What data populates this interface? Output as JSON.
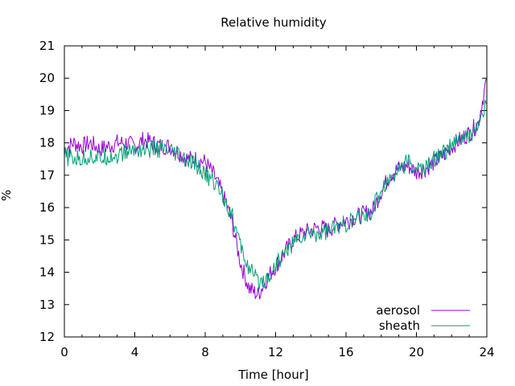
{
  "chart_data": {
    "type": "line",
    "title": "Relative humidity",
    "xlabel": "Time [hour]",
    "ylabel": "%",
    "xlim": [
      0,
      24
    ],
    "ylim": [
      12,
      21
    ],
    "xticks": [
      0,
      4,
      8,
      12,
      16,
      20,
      24
    ],
    "yticks": [
      12,
      13,
      14,
      15,
      16,
      17,
      18,
      19,
      20,
      21
    ],
    "grid": false,
    "legend_position": "bottom-right",
    "series": [
      {
        "name": "aerosol",
        "color": "#9400d3",
        "x": [
          0,
          0.5,
          1,
          1.5,
          2,
          2.5,
          3,
          3.5,
          4,
          4.5,
          5,
          5.5,
          6,
          6.5,
          7,
          7.5,
          8,
          8.5,
          9,
          9.5,
          10,
          10.5,
          11,
          11.5,
          12,
          12.5,
          13,
          13.5,
          14,
          14.5,
          15,
          15.5,
          16,
          16.5,
          17,
          17.5,
          18,
          18.5,
          19,
          19.5,
          20,
          20.5,
          21,
          21.5,
          22,
          22.5,
          23,
          23.5,
          24
        ],
        "values": [
          17.8,
          18.0,
          17.9,
          18.0,
          17.8,
          17.9,
          18.0,
          18.0,
          17.9,
          18.1,
          18.0,
          17.9,
          17.9,
          17.7,
          17.5,
          17.5,
          17.4,
          17.0,
          16.4,
          15.6,
          14.3,
          13.5,
          13.3,
          13.8,
          14.2,
          14.6,
          15.0,
          15.2,
          15.3,
          15.4,
          15.3,
          15.5,
          15.6,
          15.7,
          15.8,
          15.9,
          16.5,
          17.0,
          17.2,
          17.3,
          17.1,
          17.2,
          17.4,
          17.6,
          17.9,
          18.1,
          18.3,
          18.6,
          20.0
        ]
      },
      {
        "name": "sheath",
        "color": "#009e73",
        "x": [
          0,
          0.5,
          1,
          1.5,
          2,
          2.5,
          3,
          3.5,
          4,
          4.5,
          5,
          5.5,
          6,
          6.5,
          7,
          7.5,
          8,
          8.5,
          9,
          9.5,
          10,
          10.5,
          11,
          11.5,
          12,
          12.5,
          13,
          13.5,
          14,
          14.5,
          15,
          15.5,
          16,
          16.5,
          17,
          17.5,
          18,
          18.5,
          19,
          19.5,
          20,
          20.5,
          21,
          21.5,
          22,
          22.5,
          23,
          23.5,
          24
        ],
        "values": [
          17.6,
          17.5,
          17.5,
          17.6,
          17.5,
          17.6,
          17.6,
          17.7,
          17.8,
          17.8,
          17.8,
          17.8,
          17.7,
          17.6,
          17.4,
          17.3,
          17.0,
          16.8,
          16.4,
          15.8,
          14.8,
          14.1,
          13.7,
          13.8,
          14.2,
          14.6,
          14.9,
          15.1,
          15.2,
          15.2,
          15.3,
          15.4,
          15.5,
          15.6,
          15.7,
          15.9,
          16.6,
          16.9,
          17.2,
          17.4,
          17.2,
          17.2,
          17.5,
          17.7,
          17.9,
          18.1,
          18.2,
          18.5,
          19.2
        ]
      }
    ]
  }
}
